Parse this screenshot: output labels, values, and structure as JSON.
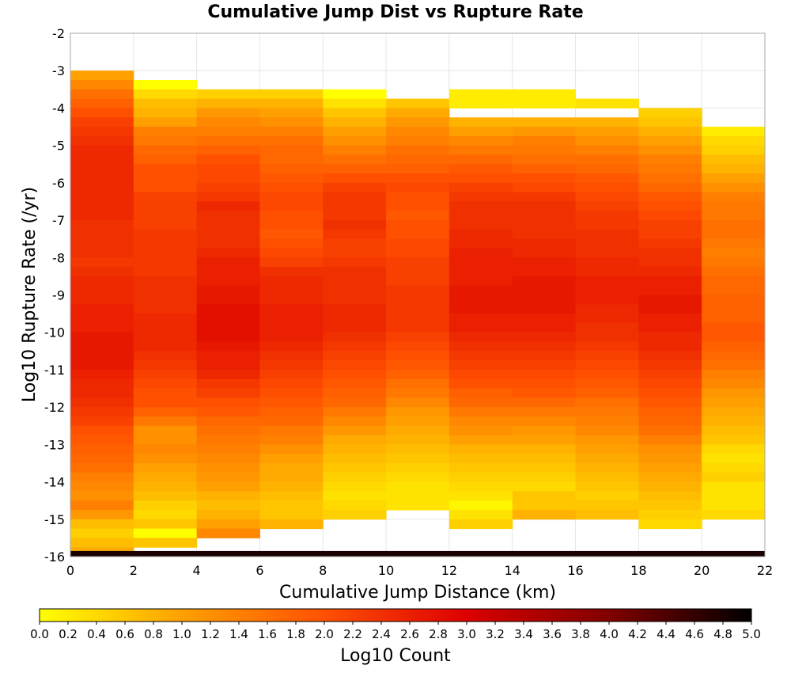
{
  "chart_data": {
    "type": "heatmap",
    "title": "Cumulative Jump Dist vs Rupture Rate",
    "xlabel": "Cumulative Jump Distance (km)",
    "ylabel": "Log10 Rupture Rate (/yr)",
    "colorbar_label": "Log10 Count",
    "xlim": [
      0,
      22
    ],
    "ylim": [
      -16,
      -2
    ],
    "x_ticks": [
      "0",
      "2",
      "4",
      "6",
      "8",
      "10",
      "12",
      "14",
      "16",
      "18",
      "20",
      "22"
    ],
    "y_ticks": [
      "-2",
      "-3",
      "-4",
      "-5",
      "-6",
      "-7",
      "-8",
      "-9",
      "-10",
      "-11",
      "-12",
      "-13",
      "-14",
      "-15",
      "-16"
    ],
    "colorbar_range": [
      0.0,
      5.0
    ],
    "colorbar_ticks": [
      "0.0",
      "0.2",
      "0.4",
      "0.6",
      "0.8",
      "1.0",
      "1.2",
      "1.4",
      "1.6",
      "1.8",
      "2.0",
      "2.2",
      "2.4",
      "2.6",
      "2.8",
      "3.0",
      "3.2",
      "3.4",
      "3.6",
      "3.8",
      "4.0",
      "4.2",
      "4.4",
      "4.6",
      "4.8",
      "5.0"
    ],
    "colormap": [
      "#ffff00",
      "#ffa000",
      "#ff5000",
      "#dc0000",
      "#800000",
      "#000000"
    ],
    "grid": true,
    "x_bin_width": 2,
    "y_bin_height": 0.25,
    "columns": [
      {
        "x": [
          0,
          2
        ],
        "y_top": -3.0,
        "levels": [
          1.0,
          1.3,
          1.6,
          1.8,
          2.0,
          2.2,
          2.3,
          2.4,
          2.5,
          2.5,
          2.5,
          2.5,
          2.5,
          2.5,
          2.5,
          2.5,
          2.4,
          2.4,
          2.4,
          2.4,
          2.3,
          2.4,
          2.5,
          2.5,
          2.5,
          2.6,
          2.6,
          2.6,
          2.7,
          2.7,
          2.7,
          2.7,
          2.6,
          2.5,
          2.5,
          2.4,
          2.3,
          2.2,
          2.0,
          1.9,
          1.8,
          1.7,
          1.6,
          1.4,
          1.3,
          1.2,
          1.4,
          1.1,
          0.7,
          0.5,
          0.7,
          0.9
        ]
      },
      {
        "x": [
          2,
          4
        ],
        "y_top": -3.25,
        "levels": [
          0.0,
          0.4,
          0.7,
          0.8,
          1.0,
          1.4,
          1.5,
          1.7,
          1.8,
          2.0,
          2.0,
          2.0,
          2.2,
          2.2,
          2.2,
          2.2,
          2.3,
          2.3,
          2.3,
          2.3,
          2.3,
          2.4,
          2.4,
          2.4,
          2.4,
          2.5,
          2.5,
          2.5,
          2.5,
          2.4,
          2.3,
          2.2,
          2.1,
          2.0,
          2.0,
          1.8,
          1.5,
          1.2,
          1.2,
          1.3,
          1.2,
          1.0,
          0.9,
          0.8,
          0.7,
          0.5,
          0.4,
          0.6,
          0.0,
          0.6
        ]
      },
      {
        "x": [
          4,
          6
        ],
        "y_top": -3.5,
        "levels": [
          0.5,
          0.8,
          1.1,
          1.3,
          1.4,
          1.6,
          1.8,
          2.0,
          2.1,
          2.1,
          2.2,
          2.3,
          2.5,
          2.4,
          2.4,
          2.4,
          2.4,
          2.5,
          2.6,
          2.6,
          2.6,
          2.7,
          2.7,
          2.8,
          2.8,
          2.8,
          2.8,
          2.7,
          2.6,
          2.6,
          2.5,
          2.3,
          2.2,
          2.0,
          1.9,
          1.7,
          1.6,
          1.5,
          1.4,
          1.3,
          1.2,
          1.1,
          1.0,
          0.8,
          0.7,
          0.8,
          1.0,
          1.3
        ]
      },
      {
        "x": [
          6,
          8
        ],
        "y_top": -3.5,
        "levels": [
          0.5,
          0.8,
          1.0,
          1.2,
          1.4,
          1.6,
          1.7,
          1.7,
          1.8,
          1.9,
          2.0,
          2.1,
          2.1,
          2.0,
          2.0,
          1.9,
          2.0,
          2.1,
          2.2,
          2.4,
          2.5,
          2.5,
          2.5,
          2.6,
          2.6,
          2.6,
          2.6,
          2.5,
          2.4,
          2.3,
          2.2,
          2.1,
          2.0,
          1.9,
          1.8,
          1.7,
          1.5,
          1.4,
          1.2,
          1.0,
          0.9,
          0.9,
          0.8,
          0.7,
          0.6,
          0.6,
          0.8
        ]
      },
      {
        "x": [
          8,
          10
        ],
        "y_top": -3.5,
        "levels": [
          0.0,
          0.3,
          0.6,
          0.8,
          1.0,
          1.2,
          1.4,
          1.6,
          1.8,
          2.0,
          2.2,
          2.3,
          2.3,
          2.3,
          2.4,
          2.3,
          2.2,
          2.2,
          2.3,
          2.4,
          2.4,
          2.4,
          2.4,
          2.5,
          2.5,
          2.5,
          2.4,
          2.3,
          2.2,
          2.1,
          2.0,
          1.9,
          1.8,
          1.7,
          1.5,
          1.3,
          1.1,
          0.9,
          0.8,
          0.7,
          0.6,
          0.5,
          0.4,
          0.3,
          0.4,
          0.5
        ]
      },
      {
        "x": [
          10,
          12
        ],
        "y_top": -3.75,
        "levels": [
          0.6,
          0.9,
          1.1,
          1.3,
          1.4,
          1.6,
          1.7,
          1.8,
          2.0,
          2.1,
          2.0,
          2.0,
          1.9,
          2.0,
          2.0,
          2.1,
          2.1,
          2.2,
          2.2,
          2.2,
          2.3,
          2.3,
          2.3,
          2.3,
          2.3,
          2.2,
          2.1,
          2.0,
          1.9,
          1.8,
          1.6,
          1.5,
          1.3,
          1.1,
          1.0,
          0.9,
          0.8,
          0.7,
          0.6,
          0.5,
          0.4,
          0.3,
          0.3,
          0.3
        ]
      },
      {
        "x": [
          12,
          14
        ],
        "y_top": -3.5,
        "levels": [
          0.2,
          0.2,
          null,
          0.8,
          1.0,
          1.3,
          1.5,
          1.7,
          1.9,
          2.0,
          2.2,
          2.3,
          2.4,
          2.4,
          2.4,
          2.5,
          2.5,
          2.6,
          2.6,
          2.6,
          2.6,
          2.7,
          2.7,
          2.7,
          2.6,
          2.6,
          2.5,
          2.4,
          2.3,
          2.2,
          2.1,
          2.0,
          1.8,
          1.7,
          1.5,
          1.3,
          1.2,
          1.0,
          0.8,
          0.7,
          0.6,
          0.5,
          0.4,
          0.3,
          0.1,
          0.3,
          0.5
        ]
      },
      {
        "x": [
          14,
          16
        ],
        "y_top": -3.5,
        "levels": [
          0.2,
          0.2,
          null,
          0.8,
          1.1,
          1.4,
          1.5,
          1.6,
          1.8,
          2.0,
          2.1,
          2.3,
          2.4,
          2.4,
          2.4,
          2.4,
          2.5,
          2.5,
          2.6,
          2.6,
          2.7,
          2.7,
          2.7,
          2.7,
          2.6,
          2.6,
          2.5,
          2.4,
          2.3,
          2.2,
          2.1,
          2.0,
          1.9,
          1.7,
          1.5,
          1.3,
          1.1,
          1.0,
          0.8,
          0.7,
          0.6,
          0.5,
          0.4,
          0.6,
          0.6,
          0.8
        ]
      },
      {
        "x": [
          16,
          18
        ],
        "y_top": -3.75,
        "levels": [
          0.3,
          null,
          0.8,
          1.0,
          1.2,
          1.4,
          1.6,
          1.7,
          1.9,
          2.0,
          2.1,
          2.2,
          2.3,
          2.3,
          2.4,
          2.4,
          2.4,
          2.5,
          2.5,
          2.6,
          2.6,
          2.6,
          2.5,
          2.5,
          2.4,
          2.4,
          2.3,
          2.2,
          2.1,
          2.0,
          1.9,
          1.8,
          1.6,
          1.5,
          1.4,
          1.3,
          1.1,
          1.0,
          0.9,
          0.8,
          0.7,
          0.6,
          0.5,
          0.6,
          0.7
        ]
      },
      {
        "x": [
          18,
          20
        ],
        "y_top": -4.0,
        "levels": [
          0.5,
          0.6,
          0.8,
          1.0,
          1.2,
          1.4,
          1.5,
          1.6,
          1.7,
          1.9,
          2.0,
          2.1,
          2.2,
          2.2,
          2.3,
          2.4,
          2.4,
          2.5,
          2.6,
          2.6,
          2.7,
          2.7,
          2.6,
          2.6,
          2.5,
          2.5,
          2.4,
          2.3,
          2.2,
          2.1,
          2.0,
          1.9,
          1.8,
          1.7,
          1.6,
          1.4,
          1.2,
          1.1,
          1.0,
          0.9,
          0.8,
          0.7,
          0.6,
          0.5,
          0.4
        ]
      },
      {
        "x": [
          20,
          22
        ],
        "y_top": -4.5,
        "levels": [
          0.2,
          0.4,
          0.5,
          0.7,
          0.8,
          1.0,
          1.2,
          1.4,
          1.5,
          1.5,
          1.6,
          1.6,
          1.5,
          1.4,
          1.5,
          1.6,
          1.7,
          1.7,
          1.8,
          1.8,
          1.8,
          1.9,
          1.9,
          1.8,
          1.7,
          1.6,
          1.4,
          1.3,
          1.1,
          1.0,
          0.9,
          0.8,
          0.7,
          0.6,
          0.4,
          0.3,
          0.4,
          0.5,
          0.3,
          0.3,
          0.3,
          0.4
        ]
      }
    ],
    "bottom_row": {
      "y": [
        -16.0,
        -15.85
      ],
      "level": 4.8
    }
  }
}
